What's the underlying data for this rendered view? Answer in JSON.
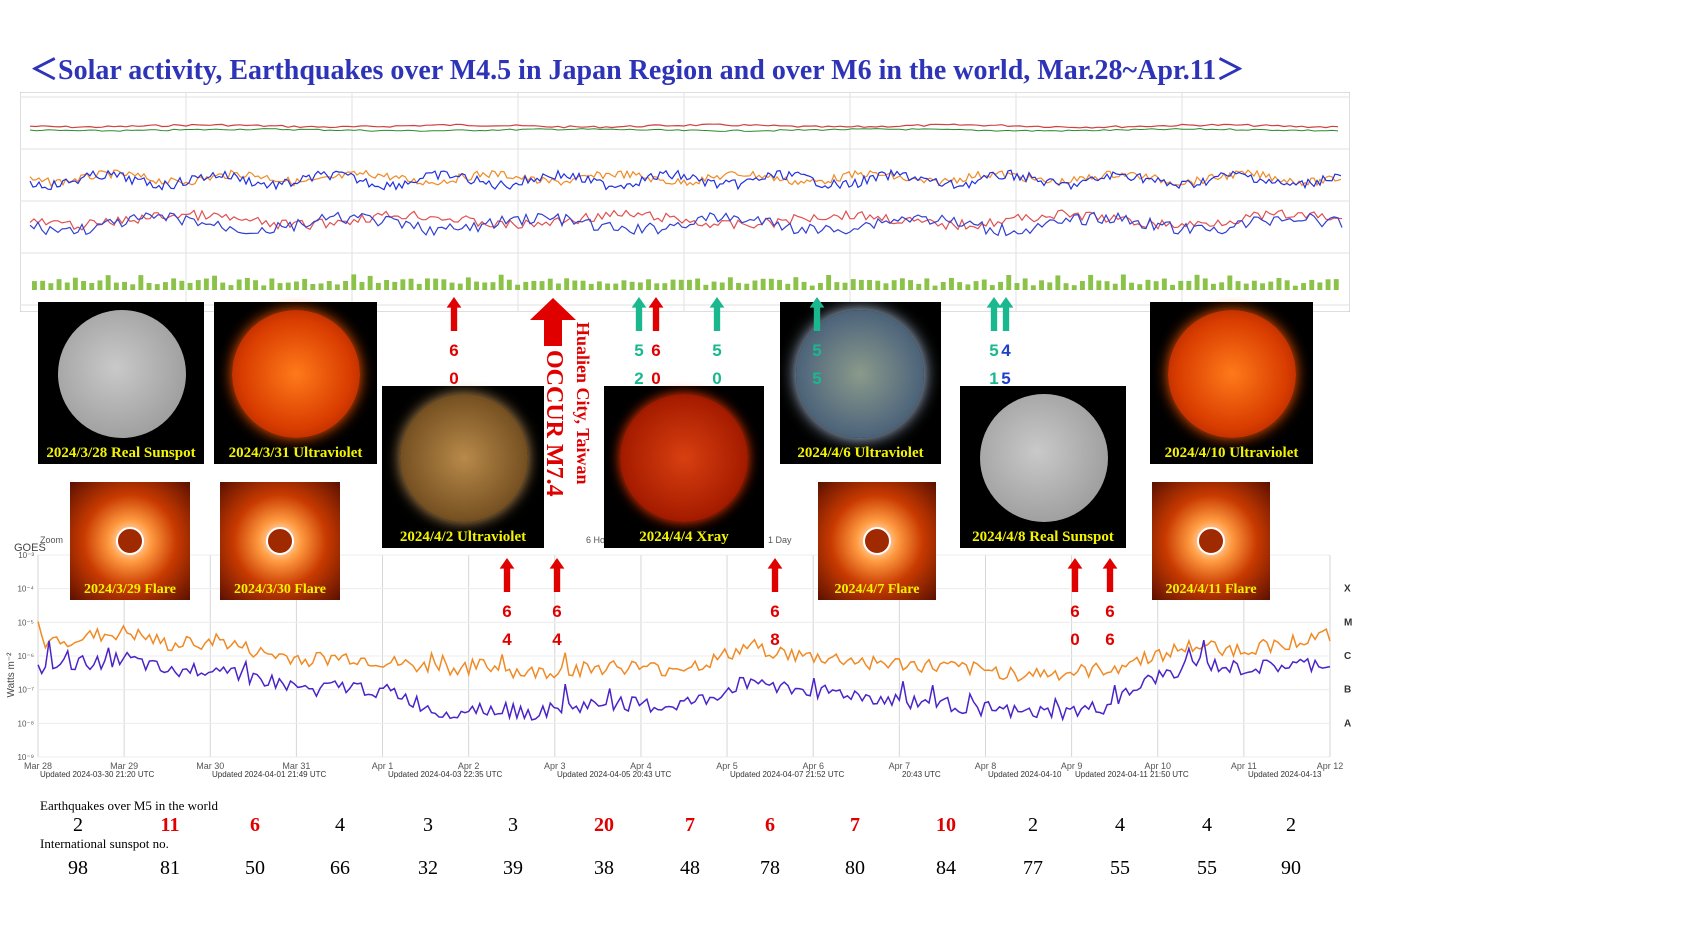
{
  "title": "＜Solar activity, Earthquakes over M4.5 in Japan Region and over M6 in the world, Mar.28~Apr.11＞",
  "colors": {
    "title": "#2e34b8",
    "red_arrow": "#e00000",
    "green_arrow": "#19b88f",
    "xray_long": "#f08a24",
    "xray_short": "#4a24c8",
    "bar": "#8bc34a"
  },
  "image_panels": [
    {
      "caption": "2024/3/28 Real Sunspot",
      "kind": "sunspot"
    },
    {
      "caption": "2024/3/31 Ultraviolet",
      "kind": "uv"
    },
    {
      "caption": "2024/4/2 Ultraviolet",
      "kind": "uv"
    },
    {
      "caption": "2024/4/4 Xray",
      "kind": "xray"
    },
    {
      "caption": "2024/4/6 Ultraviolet",
      "kind": "uv"
    },
    {
      "caption": "2024/4/8 Real Sunspot",
      "kind": "sunspot"
    },
    {
      "caption": "2024/4/10 Ultraviolet",
      "kind": "uv"
    },
    {
      "caption": "2024/3/29 Flare",
      "kind": "flare"
    },
    {
      "caption": "2024/3/30 Flare",
      "kind": "flare"
    },
    {
      "caption": "2024/4/7 Flare",
      "kind": "flare"
    },
    {
      "caption": "2024/4/11 Flare",
      "kind": "flare"
    }
  ],
  "big_event": {
    "label": "OCCUR M7.4",
    "location": "Hualien City, Taiwan"
  },
  "quake_markers_top": [
    {
      "mag": "6.0",
      "color": "red"
    },
    {
      "mag": "5.2",
      "color": "green"
    },
    {
      "mag": "6.0",
      "color": "red"
    },
    {
      "mag": "5.0",
      "color": "green"
    },
    {
      "mag": "5.5",
      "color": "green"
    },
    {
      "mag": "5.1",
      "color": "green"
    },
    {
      "mag": "4.5",
      "color": "blue"
    }
  ],
  "quake_markers_bottom": [
    "6.4",
    "6.4",
    "6.8",
    "6.0",
    "6.6"
  ],
  "chart_data": [
    {
      "type": "line",
      "title": "",
      "ylabel": "Watts m⁻²",
      "y_scale": "log",
      "ylim": [
        1e-09,
        0.001
      ],
      "y_tick_labels": [
        "10⁻⁹",
        "10⁻⁸",
        "10⁻⁷",
        "10⁻⁶",
        "10⁻⁵",
        "10⁻⁴",
        "10⁻³"
      ],
      "right_class_labels": [
        "A",
        "B",
        "C",
        "M",
        "X"
      ],
      "x_tick_labels": [
        "Mar 28",
        "Mar 29",
        "Mar 30",
        "Mar 31",
        "Apr 1",
        "Apr 2",
        "Apr 3",
        "Apr 4",
        "Apr 5",
        "Apr 6",
        "Apr 7",
        "Apr 8",
        "Apr 9",
        "Apr 10",
        "Apr 11",
        "Apr 12"
      ],
      "updated_labels": [
        "Updated 2024-03-30 21:20 UTC",
        "Updated 2024-04-01 21:49 UTC",
        "Updated 2024-04-03 22:35 UTC",
        "Updated 2024-04-05 20:43 UTC",
        "Updated 2024-04-07 21:52 UTC",
        "20:43 UTC",
        "Updated 2024-04-10",
        "Updated 2024-04-11 21:50 UTC",
        "Updated 2024-04-13"
      ],
      "toolbar_labels": [
        "Zoom",
        "6 Hour",
        "1 Day"
      ],
      "series": [
        {
          "values": [
            2.5e-06,
            3.5e-06,
            5e-06,
            2e-06,
            3e-06,
            1.2e-06,
            8e-07,
            9e-07,
            6e-07,
            4e-07,
            5e-07,
            3e-07,
            4e-07,
            5e-07,
            4e-07,
            6e-07,
            2e-06,
            1e-06,
            8e-07,
            6e-07,
            5e-07,
            4e-07,
            3e-07,
            3e-07,
            4e-07,
            1e-06,
            2e-06,
            1.5e-06,
            2.5e-06,
            4e-06
          ]
        },
        {
          "values": [
            4e-07,
            6e-07,
            8e-07,
            3e-07,
            5e-07,
            2e-07,
            1e-07,
            1.2e-07,
            8e-08,
            2e-08,
            3e-08,
            2e-08,
            3e-08,
            4e-08,
            3e-08,
            5e-08,
            2e-07,
            1e-07,
            8e-08,
            5e-08,
            4e-08,
            3e-08,
            2e-08,
            2e-08,
            3e-08,
            2e-07,
            6e-07,
            4e-07,
            5e-07,
            6e-07
          ]
        }
      ]
    },
    {
      "type": "bar",
      "title": "",
      "values": [
        3,
        4,
        2,
        3,
        3,
        4,
        3,
        2,
        3,
        4,
        3,
        3,
        2,
        4,
        3,
        2,
        3,
        4,
        3,
        2,
        3,
        3,
        4,
        3,
        2,
        3,
        4,
        3,
        2,
        3,
        2,
        3,
        4,
        3,
        2,
        3,
        3,
        2,
        3,
        4
      ]
    }
  ],
  "earthquakes": {
    "label": "Earthquakes over M5 in the world",
    "values": [
      "2",
      "11",
      "6",
      "4",
      "3",
      "3",
      "20",
      "7",
      "6",
      "7",
      "10",
      "2",
      "4",
      "4",
      "2"
    ],
    "red": [
      false,
      true,
      true,
      false,
      false,
      false,
      true,
      true,
      true,
      true,
      true,
      false,
      false,
      false,
      false
    ]
  },
  "sunspots": {
    "label": "International sunspot no.",
    "values": [
      "98",
      "81",
      "50",
      "66",
      "32",
      "39",
      "38",
      "48",
      "78",
      "80",
      "84",
      "77",
      "55",
      "55",
      "90"
    ]
  }
}
